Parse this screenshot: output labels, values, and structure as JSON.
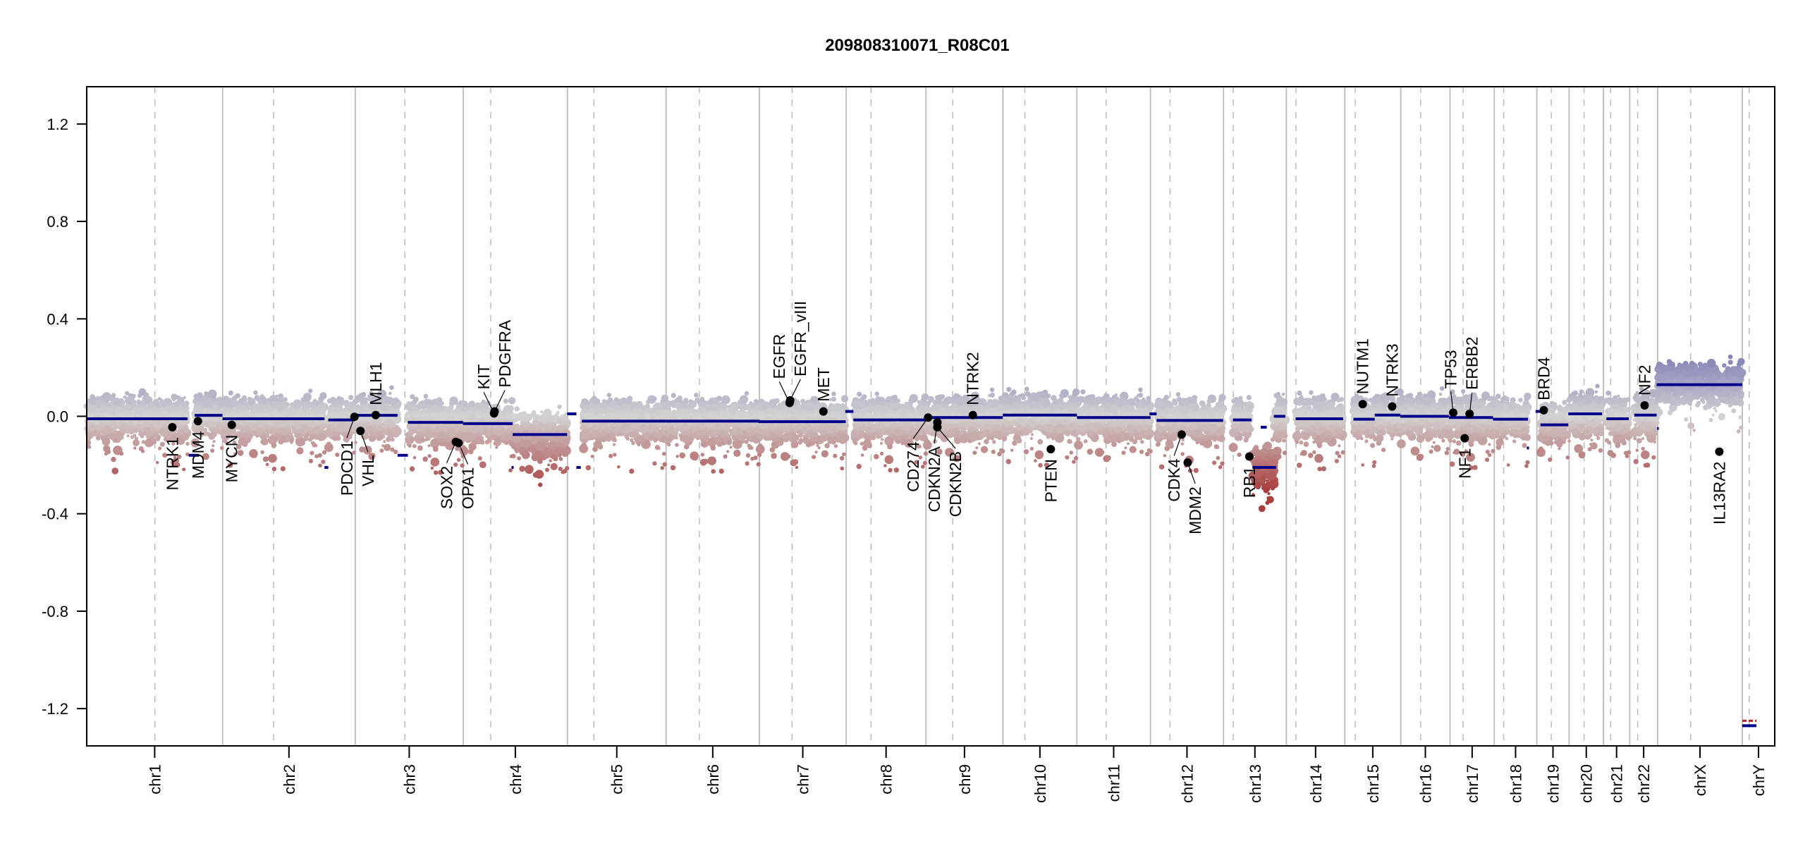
{
  "chart_data": {
    "type": "scatter",
    "title": "209808310071_R08C01",
    "xlabel": "",
    "ylabel": "",
    "ylim": [
      -1.353,
      1.353
    ],
    "yticks": [
      1.2,
      0.8,
      0.4,
      0.0,
      -0.4,
      -0.8,
      -1.2
    ],
    "ytick_labels": [
      "1.2",
      "0.8",
      "0.4",
      "0.0",
      "-0.4",
      "-0.8",
      "-1.2"
    ],
    "x_units": "cumulative genome position (Mb)",
    "chromosomes": [
      {
        "name": "chr1",
        "length": 249.25,
        "centromere": 125.0
      },
      {
        "name": "chr2",
        "length": 243.2,
        "centromere": 93.3
      },
      {
        "name": "chr3",
        "length": 198.0,
        "centromere": 91.0
      },
      {
        "name": "chr4",
        "length": 191.15,
        "centromere": 50.4
      },
      {
        "name": "chr5",
        "length": 180.9,
        "centromere": 48.4
      },
      {
        "name": "chr6",
        "length": 171.1,
        "centromere": 61.0
      },
      {
        "name": "chr7",
        "length": 159.1,
        "centromere": 59.9
      },
      {
        "name": "chr8",
        "length": 146.4,
        "centromere": 45.6
      },
      {
        "name": "chr9",
        "length": 141.2,
        "centromere": 49.0
      },
      {
        "name": "chr10",
        "length": 135.5,
        "centromere": 40.2
      },
      {
        "name": "chr11",
        "length": 135.0,
        "centromere": 53.7
      },
      {
        "name": "chr12",
        "length": 133.9,
        "centromere": 35.8
      },
      {
        "name": "chr13",
        "length": 115.2,
        "centromere": 17.9
      },
      {
        "name": "chr14",
        "length": 107.3,
        "centromere": 17.6
      },
      {
        "name": "chr15",
        "length": 102.5,
        "centromere": 19.0
      },
      {
        "name": "chr16",
        "length": 90.4,
        "centromere": 36.6
      },
      {
        "name": "chr17",
        "length": 81.2,
        "centromere": 24.0
      },
      {
        "name": "chr18",
        "length": 78.1,
        "centromere": 17.2
      },
      {
        "name": "chr19",
        "length": 59.1,
        "centromere": 26.5
      },
      {
        "name": "chr20",
        "length": 63.0,
        "centromere": 27.5
      },
      {
        "name": "chr21",
        "length": 48.1,
        "centromere": 13.2
      },
      {
        "name": "chr22",
        "length": 51.3,
        "centromere": 14.7
      },
      {
        "name": "chrX",
        "length": 155.3,
        "centromere": 60.6
      },
      {
        "name": "chrY",
        "length": 59.4,
        "centromere": 12.5
      }
    ],
    "segments": [
      [
        0,
        185,
        -0.01
      ],
      [
        187,
        206,
        -0.16
      ],
      [
        198,
        249,
        0.004
      ],
      [
        249,
        436,
        -0.01
      ],
      [
        436,
        443,
        -0.21
      ],
      [
        443,
        491,
        -0.015
      ],
      [
        491,
        570,
        0.004
      ],
      [
        570,
        589,
        -0.16
      ],
      [
        589,
        690,
        -0.025
      ],
      [
        690,
        781,
        -0.03
      ],
      [
        779,
        783,
        -0.21
      ],
      [
        781,
        881,
        -0.075
      ],
      [
        881,
        898,
        0.01
      ],
      [
        898,
        906,
        -0.21
      ],
      [
        908,
        1062,
        -0.02
      ],
      [
        1062,
        1234,
        -0.02
      ],
      [
        1232,
        1392,
        -0.022
      ],
      [
        1391,
        1406,
        0.02
      ],
      [
        1406,
        1539,
        -0.015
      ],
      [
        1539,
        1680,
        -0.005
      ],
      [
        1680,
        1816,
        0.005
      ],
      [
        1816,
        1951,
        -0.005
      ],
      [
        1949,
        1962,
        0.01
      ],
      [
        1962,
        2084,
        -0.017
      ],
      [
        2102,
        2136,
        -0.015
      ],
      [
        2138,
        2181,
        -0.21
      ],
      [
        2153,
        2164,
        -0.045
      ],
      [
        2177,
        2198,
        0.0
      ],
      [
        2217,
        2304,
        -0.01
      ],
      [
        2323,
        2362,
        -0.012
      ],
      [
        2362,
        2409,
        0.005
      ],
      [
        2409,
        2498,
        0.0
      ],
      [
        2498,
        2579,
        -0.005
      ],
      [
        2579,
        2643,
        -0.012
      ],
      [
        2641,
        2645,
        -0.13
      ],
      [
        2657,
        2666,
        0.02
      ],
      [
        2666,
        2717,
        -0.035
      ],
      [
        2717,
        2779,
        0.01
      ],
      [
        2787,
        2828,
        -0.01
      ],
      [
        2838,
        2879,
        0.005
      ],
      [
        2880,
        2883,
        -0.05
      ],
      [
        2879,
        3036,
        0.13
      ],
      [
        3036,
        3062,
        -1.27
      ]
    ],
    "segment_color": "#00008B",
    "chrY_expected": {
      "value": -1.25,
      "color": "#B22222"
    },
    "genes": [
      {
        "name": "NTRK1",
        "x": 157,
        "value": -0.045
      },
      {
        "name": "MDM4",
        "x": 204,
        "value": -0.02
      },
      {
        "name": "MYCN",
        "x": 266,
        "value": -0.035
      },
      {
        "name": "PDCD1",
        "x": 491,
        "value": -0.002
      },
      {
        "name": "VHL",
        "x": 502,
        "value": -0.06
      },
      {
        "name": "MLH1",
        "x": 530,
        "value": 0.005
      },
      {
        "name": "SOX2",
        "x": 677,
        "value": -0.105
      },
      {
        "name": "OPA1",
        "x": 682,
        "value": -0.11
      },
      {
        "name": "KIT",
        "x": 747,
        "value": 0.012
      },
      {
        "name": "PDGFRA",
        "x": 748,
        "value": 0.02
      },
      {
        "name": "EGFR",
        "x": 1289,
        "value": 0.055
      },
      {
        "name": "EGFR_vIII",
        "x": 1290,
        "value": 0.065
      },
      {
        "name": "MET",
        "x": 1351,
        "value": 0.02
      },
      {
        "name": "CD274",
        "x": 1543,
        "value": -0.005
      },
      {
        "name": "CDKN2A",
        "x": 1560,
        "value": -0.025
      },
      {
        "name": "CDKN2B",
        "x": 1560,
        "value": -0.045
      },
      {
        "name": "NTRK2",
        "x": 1625,
        "value": 0.005
      },
      {
        "name": "PTEN",
        "x": 1768,
        "value": -0.135
      },
      {
        "name": "CDK4",
        "x": 2008,
        "value": -0.075
      },
      {
        "name": "MDM2",
        "x": 2019,
        "value": -0.19
      },
      {
        "name": "RB1",
        "x": 2132,
        "value": -0.165
      },
      {
        "name": "NUTM1",
        "x": 2340,
        "value": 0.05
      },
      {
        "name": "NTRK3",
        "x": 2394,
        "value": 0.04
      },
      {
        "name": "TP53",
        "x": 2506,
        "value": 0.015
      },
      {
        "name": "NF1",
        "x": 2527,
        "value": -0.09
      },
      {
        "name": "ERBB2",
        "x": 2536,
        "value": 0.01
      },
      {
        "name": "BRD4",
        "x": 2672,
        "value": 0.025
      },
      {
        "name": "NF2",
        "x": 2857,
        "value": 0.045
      },
      {
        "name": "IL13RA2",
        "x": 2994,
        "value": -0.145
      }
    ],
    "bin_colors": {
      "high": "#7070B0",
      "mid": "#D3D3D3",
      "low": "#A83E3E"
    },
    "grid": "chromosome boundaries (solid) and centromeres (dashed)"
  }
}
